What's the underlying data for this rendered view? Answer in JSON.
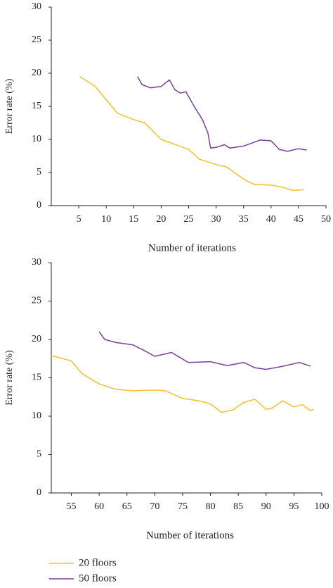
{
  "chart_data": [
    {
      "type": "line",
      "ylabel": "Error rate (%)",
      "xlabel": "Number of iterations",
      "xlim": [
        0,
        50
      ],
      "xticks": [
        5,
        10,
        15,
        20,
        25,
        30,
        35,
        40,
        45,
        50
      ],
      "ylim": [
        0,
        30
      ],
      "yticks": [
        0,
        5,
        10,
        15,
        20,
        25,
        30
      ],
      "series": [
        {
          "name": "20 floors",
          "color": "#f2c12e",
          "x": [
            5.2,
            8,
            10,
            12,
            15,
            17,
            20,
            25,
            27,
            30,
            32,
            35,
            37,
            40,
            42,
            44,
            46
          ],
          "values": [
            19.5,
            18,
            16,
            14,
            13,
            12.5,
            10,
            8.5,
            7,
            6.2,
            5.8,
            4,
            3.2,
            3.1,
            2.8,
            2.3,
            2.4
          ]
        },
        {
          "name": "50 floors",
          "color": "#7b3f9e",
          "x": [
            15.7,
            16.5,
            18,
            20,
            21.5,
            22.5,
            23.5,
            24.5,
            26,
            27.5,
            28.5,
            29,
            30,
            31.5,
            32.5,
            35,
            38,
            40,
            41.5,
            43,
            45,
            46.5
          ],
          "values": [
            19.5,
            18.3,
            17.8,
            18,
            19,
            17.5,
            17,
            17.2,
            15,
            13,
            11,
            8.7,
            8.8,
            9.2,
            8.7,
            9,
            9.9,
            9.8,
            8.5,
            8.2,
            8.6,
            8.4
          ]
        }
      ]
    },
    {
      "type": "line",
      "ylabel": "Error rate (%)",
      "xlabel": "Number of iterations",
      "xlim": [
        51.4,
        100
      ],
      "xticks": [
        55,
        60,
        65,
        70,
        75,
        80,
        85,
        90,
        95,
        100
      ],
      "ylim": [
        0,
        30
      ],
      "yticks": [
        0,
        5,
        10,
        15,
        20,
        25,
        30
      ],
      "series": [
        {
          "color": "#f2c12e",
          "x": [
            51.4,
            53,
            55,
            57,
            60,
            63,
            66,
            70,
            72,
            75,
            78,
            80,
            82,
            84,
            86,
            88,
            90,
            91,
            93,
            95,
            96.5,
            98,
            98.5
          ],
          "values": [
            17.9,
            17.6,
            17.2,
            15.5,
            14.2,
            13.5,
            13.3,
            13.4,
            13.3,
            12.3,
            12,
            11.6,
            10.5,
            10.8,
            11.8,
            12.2,
            10.9,
            11,
            12,
            11.2,
            11.5,
            10.7,
            10.9
          ]
        },
        {
          "color": "#7b3f9e",
          "x": [
            60,
            61,
            63,
            66,
            68,
            70,
            73,
            76,
            80,
            83,
            86,
            88,
            90,
            93,
            96,
            98
          ],
          "values": [
            21,
            20,
            19.6,
            19.3,
            18.6,
            17.8,
            18.3,
            17,
            17.1,
            16.6,
            17,
            16.3,
            16.1,
            16.5,
            17,
            16.5
          ]
        }
      ]
    }
  ]
}
